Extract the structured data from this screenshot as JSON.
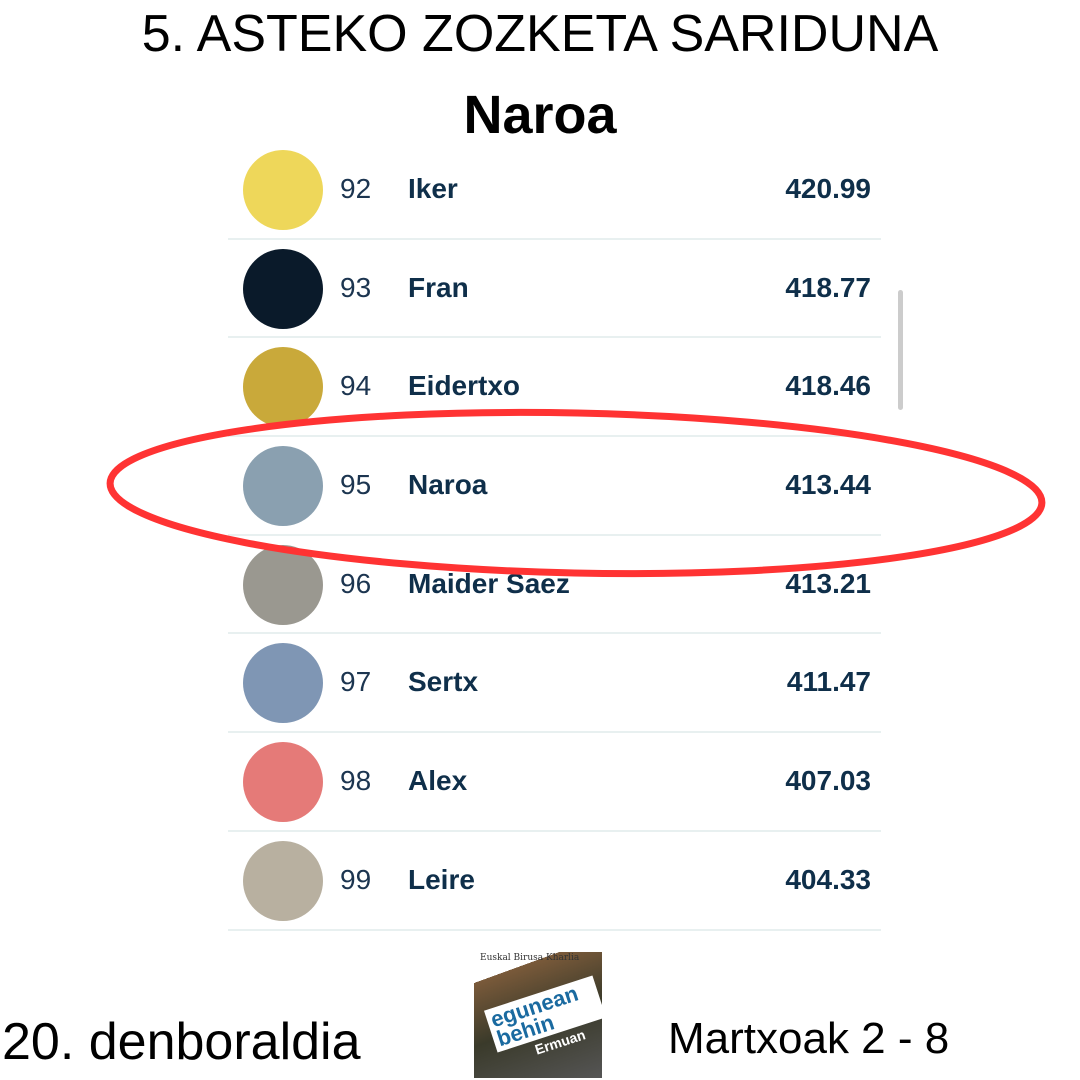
{
  "header": {
    "title": "5. ASTEKO ZOZKETA SARIDUNA",
    "winner": "Naroa"
  },
  "ranking": [
    {
      "rank": "92",
      "name": "Iker",
      "score": "420.99",
      "avatar": "yellow-face-avatar",
      "color": "#eed75a"
    },
    {
      "rank": "93",
      "name": "Fran",
      "score": "418.77",
      "avatar": "xray-head-avatar",
      "color": "#0a1a2a"
    },
    {
      "rank": "94",
      "name": "Eidertxo",
      "score": "418.46",
      "avatar": "sign-avatar",
      "color": "#c9a93a"
    },
    {
      "rank": "95",
      "name": "Naroa",
      "score": "413.44",
      "avatar": "coast-photo-avatar",
      "color": "#8aa0b0"
    },
    {
      "rank": "96",
      "name": "Maider Saez",
      "score": "413.21",
      "avatar": "person-photo-avatar",
      "color": "#9a9890"
    },
    {
      "rank": "97",
      "name": "Sertx",
      "score": "411.47",
      "avatar": "paraglider-avatar",
      "color": "#7f96b4"
    },
    {
      "rank": "98",
      "name": "Alex",
      "score": "407.03",
      "avatar": "pink-face-avatar",
      "color": "#e57a78"
    },
    {
      "rank": "99",
      "name": "Leire",
      "score": "404.33",
      "avatar": "panda-avatar",
      "color": "#b8b0a0"
    }
  ],
  "highlight": {
    "rank": "95",
    "color": "#ff3333"
  },
  "footer": {
    "season": "20. denboraldia",
    "dates": "Martxoak 2 - 8",
    "logo": {
      "brand": "Euskal Birusa Kharlia",
      "main": "egunean behin",
      "town": "Ermuan"
    }
  }
}
